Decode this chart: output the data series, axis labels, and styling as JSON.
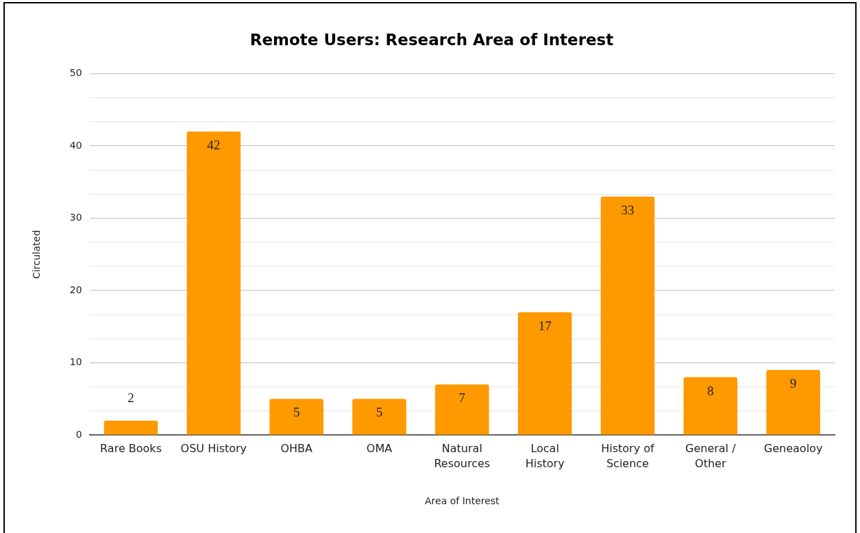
{
  "chart_data": {
    "type": "bar",
    "title": "Remote Users: Research Area of Interest",
    "xlabel": "Area of Interest",
    "ylabel": "Circulated",
    "categories": [
      "Rare Books",
      "OSU History",
      "OHBA",
      "OMA",
      "Natural Resources",
      "Local History",
      "History of Science",
      "General / Other",
      "Geneaoloy"
    ],
    "values": [
      2,
      42,
      5,
      5,
      7,
      17,
      33,
      8,
      9
    ],
    "color": "#ff9900",
    "ylim": [
      0,
      50
    ],
    "yticks": [
      0,
      {
        "value": 3.33,
        "label": null
      },
      {
        "value": 6.67,
        "label": null
      },
      10,
      {
        "value": 13.33,
        "label": null
      },
      {
        "value": 16.67,
        "label": null
      },
      20,
      {
        "value": 23.33,
        "label": null
      },
      {
        "value": 26.67,
        "label": null
      },
      30,
      {
        "value": 33.33,
        "label": null
      },
      {
        "value": 36.67,
        "label": null
      },
      40,
      {
        "value": 43.33,
        "label": null
      },
      {
        "value": 46.67,
        "label": null
      },
      50
    ],
    "grid": "y",
    "legend": false,
    "data_labels": true
  }
}
